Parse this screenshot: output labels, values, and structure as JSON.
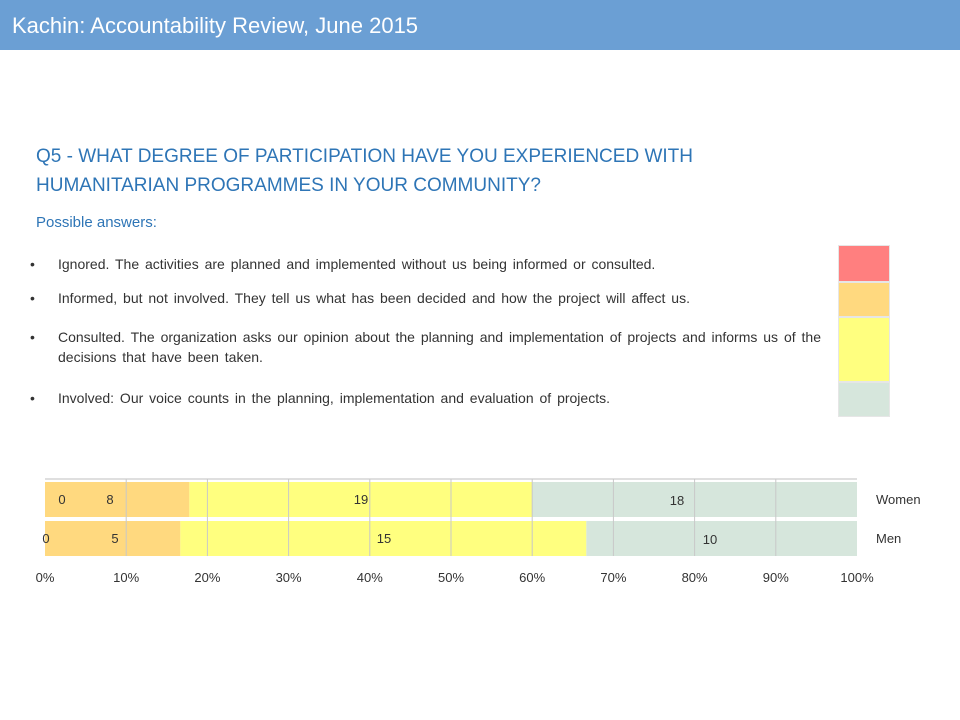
{
  "header": {
    "title": "Kachin: Accountability Review, June 2015"
  },
  "question": {
    "line1": "Q5 - WHAT DEGREE OF PARTICIPATION HAVE YOU EXPERIENCED WITH",
    "line2": "HUMANITARIAN PROGRAMMES IN YOUR COMMUNITY?",
    "possible_answers_label": "Possible answers:"
  },
  "answers": [
    {
      "bullet": "•",
      "text": "Ignored. The activities are planned and implemented without us being informed or consulted."
    },
    {
      "bullet": "•",
      "text": "Informed, but not involved. They tell us what has been decided and how the project will affect us."
    },
    {
      "bullet": "•",
      "text": "Consulted. The organization asks our opinion about the planning and implementation of projects and informs us of the decisions that have been taken."
    },
    {
      "bullet": "•",
      "text": "Involved: Our voice counts in the planning, implementation and evaluation of projects."
    }
  ],
  "colors": {
    "header": "#6b9fd4",
    "ignored": "#ff7f7f",
    "informed": "#ffd97f",
    "consulted": "#ffff7f",
    "involved": "#d6e6dc",
    "question_text": "#2e75b6"
  },
  "chart_data": {
    "type": "bar",
    "orientation": "horizontal",
    "stacked": "percent",
    "categories": [
      "Women",
      "Men"
    ],
    "series": [
      {
        "values": [
          0,
          0
        ],
        "labels": [
          "0",
          "0"
        ]
      },
      {
        "values": [
          8,
          5
        ],
        "labels": [
          "8",
          "5"
        ]
      },
      {
        "values": [
          19,
          15
        ],
        "labels": [
          "19",
          "15"
        ]
      },
      {
        "values": [
          18,
          10
        ],
        "labels": [
          "18",
          "10"
        ]
      }
    ],
    "series_colors": [
      "#ff7f7f",
      "#ffd97f",
      "#ffff7f",
      "#d6e6dc"
    ],
    "x_ticks": [
      "0%",
      "10%",
      "20%",
      "30%",
      "40%",
      "50%",
      "60%",
      "70%",
      "80%",
      "90%",
      "100%"
    ],
    "xlim": [
      0,
      100
    ],
    "grid": "vertical",
    "legend": "none"
  }
}
